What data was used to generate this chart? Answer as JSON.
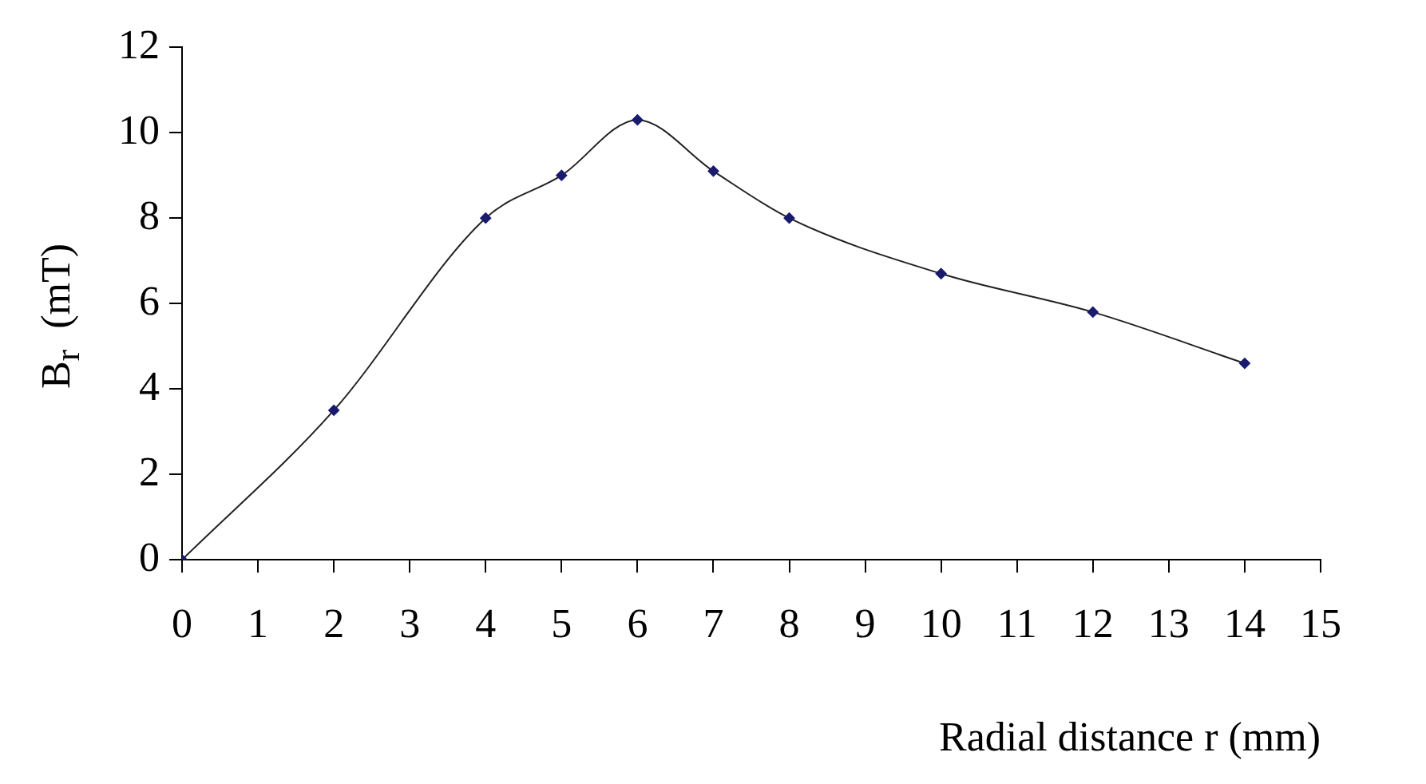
{
  "chart_data": {
    "type": "line",
    "xlabel": "Radial distance r (mm)",
    "ylabel": "B$_{r}$  (mT)",
    "x": [
      0,
      2,
      4,
      5,
      6,
      7,
      8,
      10,
      12,
      14
    ],
    "series": [
      {
        "color": "#1a1a6e",
        "values": [
          0,
          3.5,
          8,
          9,
          10.3,
          9.1,
          8,
          6.7,
          5.8,
          4.6
        ]
      }
    ],
    "xlim": [
      0,
      15
    ],
    "xticks": [
      0,
      1,
      2,
      3,
      4,
      5,
      6,
      7,
      8,
      9,
      10,
      11,
      12,
      13,
      14,
      15
    ],
    "ylim": [
      0,
      12
    ],
    "yticks": [
      0,
      2,
      4,
      6,
      8,
      10,
      12
    ],
    "marker": "diamond",
    "line_style": "solid"
  }
}
